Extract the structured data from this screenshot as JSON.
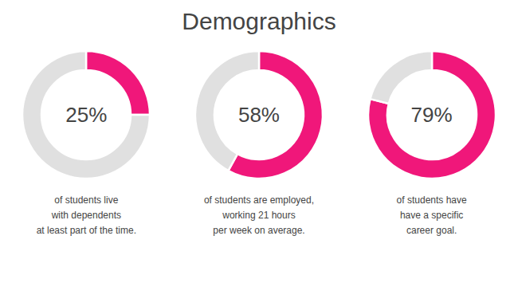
{
  "title": "Demographics",
  "chart_data": [
    {
      "type": "pie",
      "values": [
        25,
        75
      ],
      "colors": [
        "#f0177a",
        "#e0e0e0"
      ],
      "annotations": [
        "25%",
        "of students live\nwith dependents\nat least part of the time."
      ]
    },
    {
      "type": "pie",
      "values": [
        58,
        42
      ],
      "colors": [
        "#f0177a",
        "#e0e0e0"
      ],
      "annotations": [
        "58%",
        "of students are employed,\nworking 21 hours\nper week on average."
      ]
    },
    {
      "type": "pie",
      "values": [
        79,
        21
      ],
      "colors": [
        "#f0177a",
        "#e0e0e0"
      ],
      "annotations": [
        "79%",
        "of students have\nhave a specific\ncareer goal."
      ]
    }
  ]
}
